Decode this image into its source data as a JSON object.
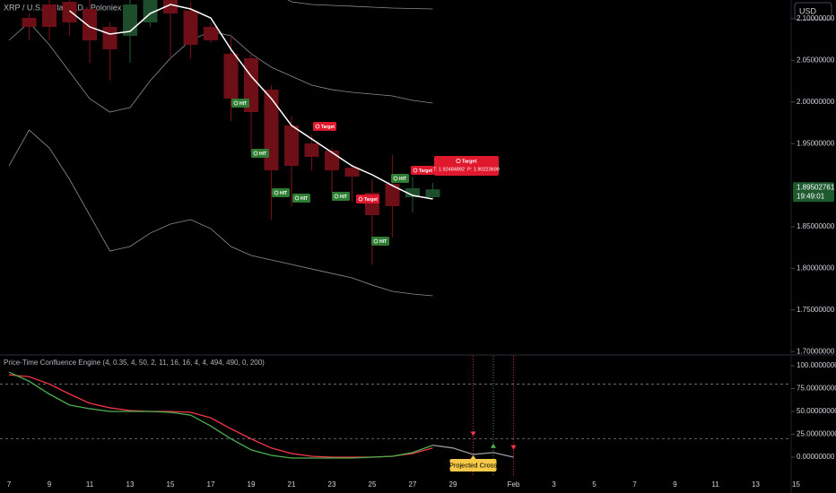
{
  "ui": {
    "currency": "USD"
  },
  "chart_data": [
    {
      "type": "candlestick",
      "title": "XRP / U.S. Dollar · 1D · Poloniex",
      "categories": [
        "7",
        null,
        "9",
        null,
        "11",
        null,
        "13",
        null,
        "15",
        null,
        "17",
        null,
        "19",
        null,
        "21",
        null,
        "23",
        null,
        "25",
        null,
        "27",
        null,
        "29",
        null,
        null,
        "Feb",
        null,
        "3",
        null,
        "5",
        null,
        "7",
        null,
        "9",
        null,
        "11",
        null,
        "13",
        null,
        "15"
      ],
      "open": [
        null,
        2.1011,
        2.1172,
        2.1204,
        2.1118,
        2.0903,
        2.0795,
        2.0957,
        2.124,
        2.11,
        2.0903,
        2.058,
        2.0526,
        2.0148,
        1.9717,
        1.9502,
        1.9416,
        1.9211,
        1.8909,
        1.9017,
        1.8855,
        1.8855,
        null,
        null,
        null,
        null,
        null,
        null,
        null,
        null,
        null,
        null,
        null,
        null,
        null,
        null,
        null,
        null,
        null,
        null
      ],
      "high": [
        null,
        2.1064,
        2.1226,
        2.1226,
        2.1226,
        2.0957,
        2.1226,
        2.13,
        2.13,
        2.12,
        2.0957,
        2.0817,
        2.058,
        2.0202,
        1.9825,
        1.961,
        1.9448,
        1.9254,
        1.9071,
        1.9362,
        1.9103,
        1.9028,
        null,
        null,
        null,
        null,
        null,
        null,
        null,
        null,
        null,
        null,
        null,
        null,
        null,
        null,
        null,
        null,
        null,
        null
      ],
      "low": [
        null,
        2.0741,
        2.0741,
        2.0795,
        2.0472,
        2.0256,
        2.0472,
        2.0903,
        2.0526,
        2.0526,
        2.071,
        1.9771,
        1.9394,
        1.8586,
        1.8748,
        1.9179,
        1.8909,
        1.88,
        1.8047,
        1.837,
        1.8672,
        1.884,
        null,
        null,
        null,
        null,
        null,
        null,
        null,
        null,
        null,
        null,
        null,
        null,
        null,
        null,
        null,
        null,
        null,
        null
      ],
      "close": [
        null,
        2.0903,
        2.0903,
        2.0957,
        2.0741,
        2.0633,
        2.1172,
        2.125,
        2.1064,
        2.0687,
        2.0741,
        2.0041,
        1.9879,
        1.9179,
        1.9232,
        1.934,
        1.9179,
        1.9103,
        1.864,
        1.8748,
        1.8963,
        1.89502761,
        null,
        null,
        null,
        null,
        null,
        null,
        null,
        null,
        null,
        null,
        null,
        null,
        null,
        null,
        null,
        null,
        null,
        null
      ],
      "up_color": "#1e4d2b",
      "down_color": "#6e0f17",
      "overlays": [
        {
          "color": "#ffffff",
          "width": 1.5,
          "values": [
            null,
            null,
            null,
            2.1097,
            2.0903,
            2.0817,
            2.0849,
            2.1064,
            2.1172,
            2.1118,
            2.101,
            2.0633,
            2.031,
            2.0041,
            1.9717,
            1.9556,
            1.9394,
            1.9232,
            1.9125,
            1.8995,
            1.8877,
            1.8834,
            null,
            null,
            null,
            null,
            null,
            null,
            null,
            null,
            null,
            null,
            null,
            null,
            null,
            null,
            null,
            null,
            null,
            null
          ]
        },
        {
          "color": "#8a8d96",
          "width": 0.8,
          "values": [
            2.0741,
            2.0957,
            2.0687,
            2.0364,
            2.004,
            1.9879,
            1.9933,
            2.0256,
            2.0526,
            2.0741,
            2.0849,
            2.0795,
            2.058,
            2.0418,
            2.031,
            2.0202,
            2.0148,
            2.0116,
            2.0095,
            2.0073,
            2.0019,
            1.9987,
            null,
            null,
            null,
            null,
            null,
            null,
            null,
            null,
            null,
            null,
            null,
            null,
            null,
            null,
            null,
            null,
            null,
            null
          ]
        },
        {
          "color": "#8a8d96",
          "width": 0.8,
          "values": [
            1.9232,
            1.9663,
            1.9448,
            1.9071,
            1.864,
            1.8209,
            1.8263,
            1.8424,
            1.8532,
            1.8586,
            1.8478,
            1.8263,
            1.8155,
            1.8101,
            1.8047,
            1.7993,
            1.7939,
            1.7886,
            1.7799,
            1.7724,
            1.7692,
            1.767,
            null,
            null,
            null,
            null,
            null,
            null,
            null,
            null,
            null,
            null,
            null,
            null,
            null,
            null,
            null,
            null,
            null,
            null
          ]
        },
        {
          "color": "#8a8d96",
          "width": 0.8,
          "values": [
            null,
            null,
            null,
            null,
            null,
            null,
            null,
            null,
            null,
            null,
            null,
            null,
            null,
            2.1334,
            2.1204,
            2.1172,
            2.1161,
            2.1151,
            2.114,
            2.1129,
            2.1124,
            2.1118,
            null,
            null,
            null,
            null,
            null,
            null,
            null,
            null,
            null,
            null,
            null,
            null,
            null,
            null,
            null,
            null,
            null,
            null
          ]
        }
      ],
      "ylim": [
        1.697,
        2.1226
      ],
      "yticks": [
        {
          "value": 1.7,
          "label": "1.70000000"
        },
        {
          "value": 1.75,
          "label": "1.75000000"
        },
        {
          "value": 1.8,
          "label": "1.80000000"
        },
        {
          "value": 1.85,
          "label": "1.85000000"
        },
        {
          "value": 1.95,
          "label": "1.95000000"
        },
        {
          "value": 2.0,
          "label": "2.00000000"
        },
        {
          "value": 2.05,
          "label": "2.05000000"
        },
        {
          "value": 2.1,
          "label": "2.10000000"
        }
      ],
      "countdown": "19:49:01",
      "hit_badges": [
        "HIT",
        "HIT",
        "HIT",
        "HIT",
        "HIT",
        "HIT",
        "HIT"
      ],
      "target_badges": [
        "Target",
        "Target",
        "Target"
      ],
      "tooltip": {
        "title": "Target",
        "detail": "T: 1.92484892  P: 1.90223699"
      }
    },
    {
      "type": "line",
      "title": "Price-Time Confluence Engine (4, 0.35, 4, 50, 2, 11, 16, 16, 4, 4, 494, 490, 0, 200)",
      "series": [
        {
          "color": "#f23645",
          "values": [
            90,
            88,
            80,
            69,
            59,
            54,
            51,
            50,
            50,
            49,
            43,
            31,
            20,
            10,
            4,
            1,
            0,
            0,
            0,
            1,
            4,
            10,
            null,
            null,
            null,
            null,
            null,
            null,
            null,
            null,
            null,
            null,
            null,
            null,
            null,
            null,
            null,
            null,
            null,
            null
          ]
        },
        {
          "color": "#4caf50",
          "values": [
            93,
            83,
            69,
            57,
            53,
            50,
            50,
            50,
            49,
            46,
            34,
            20,
            8,
            2,
            -1,
            -1,
            -1,
            -1,
            0,
            1,
            5,
            13,
            null,
            null,
            null,
            null,
            null,
            null,
            null,
            null,
            null,
            null,
            null,
            null,
            null,
            null,
            null,
            null,
            null,
            null
          ]
        },
        {
          "color": "#9598a1",
          "values": [
            null,
            null,
            null,
            null,
            null,
            null,
            null,
            null,
            null,
            null,
            null,
            null,
            null,
            null,
            null,
            null,
            null,
            null,
            null,
            null,
            null,
            13,
            10,
            3,
            5,
            0,
            null,
            null,
            null,
            null,
            null,
            null,
            null,
            null,
            null,
            null,
            null,
            null,
            null,
            null
          ]
        }
      ],
      "signals": [
        {
          "color": "#f23645",
          "shape": "down",
          "values": [
            null,
            null,
            null,
            null,
            null,
            null,
            null,
            null,
            null,
            null,
            null,
            null,
            null,
            null,
            null,
            null,
            null,
            null,
            null,
            null,
            null,
            null,
            null,
            25,
            null,
            10,
            null,
            null,
            null,
            null,
            null,
            null,
            null,
            null,
            null,
            null,
            null,
            null,
            null,
            null
          ]
        },
        {
          "color": "#4caf50",
          "shape": "up",
          "values": [
            null,
            null,
            null,
            null,
            null,
            null,
            null,
            null,
            null,
            null,
            null,
            null,
            null,
            null,
            null,
            null,
            null,
            null,
            null,
            null,
            null,
            null,
            null,
            null,
            13,
            null,
            null,
            null,
            null,
            null,
            null,
            null,
            null,
            null,
            null,
            null,
            null,
            null,
            null,
            null
          ]
        }
      ],
      "levels": [
        80,
        20
      ],
      "ylim": [
        -19.6,
        110.8
      ],
      "yticks": [
        {
          "value": 0,
          "label": "0.00000000"
        },
        {
          "value": 25,
          "label": "25.00000000"
        },
        {
          "value": 50,
          "label": "50.00000000"
        },
        {
          "value": 75,
          "label": "75.00000000"
        },
        {
          "value": 100,
          "label": "100.00000000"
        }
      ],
      "annotation": "Projected Cross"
    }
  ]
}
